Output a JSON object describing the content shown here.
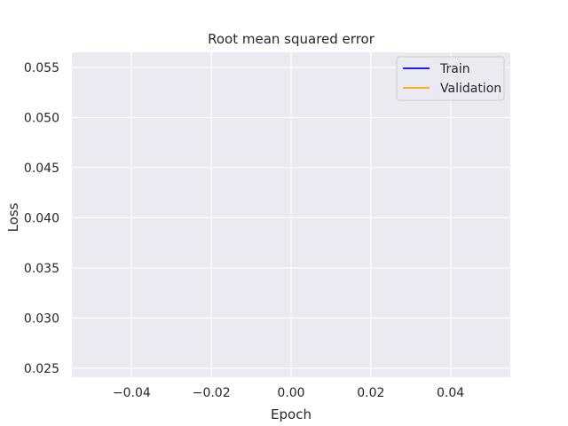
{
  "chart_data": {
    "type": "line",
    "title": "Root mean squared error",
    "xlabel": "Epoch",
    "ylabel": "Loss",
    "xlim": [
      -0.055,
      0.055
    ],
    "ylim": [
      0.0241,
      0.0565
    ],
    "xticks": [
      -0.04,
      -0.02,
      0.0,
      0.02,
      0.04
    ],
    "xtick_labels": [
      "−0.04",
      "−0.02",
      "0.00",
      "0.02",
      "0.04"
    ],
    "yticks": [
      0.025,
      0.03,
      0.035,
      0.04,
      0.045,
      0.05,
      0.055
    ],
    "ytick_labels": [
      "0.025",
      "0.030",
      "0.035",
      "0.040",
      "0.045",
      "0.050",
      "0.055"
    ],
    "grid": true,
    "legend_position": "top-right",
    "series": [
      {
        "name": "Train",
        "color": "#0000ff",
        "x": [],
        "y": []
      },
      {
        "name": "Validation",
        "color": "#ffa500",
        "x": [],
        "y": []
      }
    ],
    "colors": {
      "plot_background": "#eaeaf2",
      "grid": "#ffffff",
      "text": "#262626"
    }
  }
}
